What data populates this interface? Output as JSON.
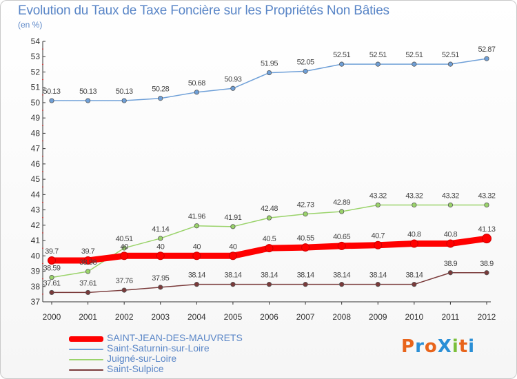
{
  "title": "Evolution du Taux de Taxe Foncière sur les Propriétés Non Bâties",
  "subtitle": "(en %)",
  "logo": {
    "text": "ProXiti",
    "colors": [
      "#e8641b",
      "#2a8fd6",
      "#e8641b",
      "#2a8fd6",
      "#7bbf3a",
      "#e8641b",
      "#2a8fd6"
    ]
  },
  "chart_data": {
    "type": "line",
    "x": [
      "2000",
      "2001",
      "2002",
      "2003",
      "2004",
      "2005",
      "2006",
      "2007",
      "2008",
      "2009",
      "2010",
      "2011",
      "2012"
    ],
    "ylim": [
      37,
      54
    ],
    "yticks": [
      "37",
      "38",
      "39",
      "40",
      "41",
      "42",
      "43",
      "44",
      "45",
      "46",
      "47",
      "48",
      "49",
      "50",
      "51",
      "52",
      "53",
      "54"
    ],
    "grid": false,
    "legend_position": "bottom-left",
    "series": [
      {
        "name": "SAINT-JEAN-DES-MAUVRETS",
        "color": "#ff0000",
        "values": [
          39.7,
          39.7,
          40,
          40,
          40,
          40,
          40.5,
          40.55,
          40.65,
          40.7,
          40.8,
          40.8,
          41.13
        ],
        "labels": [
          "39.7",
          "39.7",
          "40",
          "40",
          "40",
          "40",
          "40.5",
          "40.55",
          "40.65",
          "40.7",
          "40.8",
          "40.8",
          "41.13"
        ]
      },
      {
        "name": "Saint-Saturnin-sur-Loire",
        "color": "#6fa0d8",
        "values": [
          50.13,
          50.13,
          50.13,
          50.28,
          50.68,
          50.93,
          51.95,
          52.05,
          52.51,
          52.51,
          52.51,
          52.51,
          52.87
        ],
        "labels": [
          "50.13",
          "50.13",
          "50.13",
          "50.28",
          "50.68",
          "50.93",
          "51.95",
          "52.05",
          "52.51",
          "52.51",
          "52.51",
          "52.51",
          "52.87"
        ]
      },
      {
        "name": "Juigné-sur-Loire",
        "color": "#9ad36a",
        "values": [
          38.59,
          38.98,
          40.51,
          41.14,
          41.96,
          41.91,
          42.48,
          42.73,
          42.89,
          43.32,
          43.32,
          43.32,
          43.32
        ],
        "labels": [
          "38.59",
          "38.98",
          "40.51",
          "41.14",
          "41.96",
          "41.91",
          "42.48",
          "42.73",
          "42.89",
          "43.32",
          "43.32",
          "43.32",
          "43.32"
        ]
      },
      {
        "name": "Saint-Sulpice",
        "color": "#7a3a3a",
        "values": [
          37.61,
          37.61,
          37.76,
          37.95,
          38.14,
          38.14,
          38.14,
          38.14,
          38.14,
          38.14,
          38.14,
          38.9,
          38.9
        ],
        "labels": [
          "37.61",
          "37.61",
          "37.76",
          "37.95",
          "38.14",
          "38.14",
          "38.14",
          "38.14",
          "38.14",
          "38.14",
          "38.14",
          "38.9",
          "38.9"
        ]
      }
    ]
  }
}
